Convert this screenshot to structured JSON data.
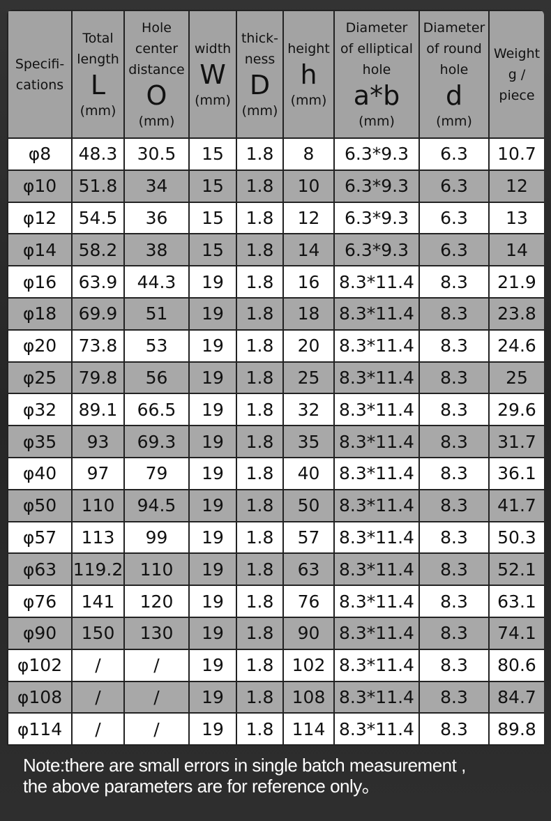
{
  "headers": [
    {
      "label": "Specifi-\ncations",
      "symbol": "",
      "unit": ""
    },
    {
      "label": "Total\nlength",
      "symbol": "L",
      "unit": "(mm)"
    },
    {
      "label": "Hole\ncenter\ndistance",
      "symbol": "O",
      "unit": "(mm)"
    },
    {
      "label": "width",
      "symbol": "W",
      "unit": "(mm)"
    },
    {
      "label": "thick-\nness",
      "symbol": "D",
      "unit": "(mm)"
    },
    {
      "label": "height",
      "symbol": "h",
      "unit": "(mm)"
    },
    {
      "label": "Diameter\nof elliptical\nhole",
      "symbol": "a*b",
      "unit": "(mm)"
    },
    {
      "label": "Diameter\nof round\nhole",
      "symbol": "d",
      "unit": "(mm)"
    },
    {
      "label": "Weight\ng /\npiece",
      "symbol": "",
      "unit": ""
    }
  ],
  "rows": [
    [
      "φ8",
      "48.3",
      "30.5",
      "15",
      "1.8",
      "8",
      "6.3*9.3",
      "6.3",
      "10.7"
    ],
    [
      "φ10",
      "51.8",
      "34",
      "15",
      "1.8",
      "10",
      "6.3*9.3",
      "6.3",
      "12"
    ],
    [
      "φ12",
      "54.5",
      "36",
      "15",
      "1.8",
      "12",
      "6.3*9.3",
      "6.3",
      "13"
    ],
    [
      "φ14",
      "58.2",
      "38",
      "15",
      "1.8",
      "14",
      "6.3*9.3",
      "6.3",
      "14"
    ],
    [
      "φ16",
      "63.9",
      "44.3",
      "19",
      "1.8",
      "16",
      "8.3*11.4",
      "8.3",
      "21.9"
    ],
    [
      "φ18",
      "69.9",
      "51",
      "19",
      "1.8",
      "18",
      "8.3*11.4",
      "8.3",
      "23.8"
    ],
    [
      "φ20",
      "73.8",
      "53",
      "19",
      "1.8",
      "20",
      "8.3*11.4",
      "8.3",
      "24.6"
    ],
    [
      "φ25",
      "79.8",
      "56",
      "19",
      "1.8",
      "25",
      "8.3*11.4",
      "8.3",
      "25"
    ],
    [
      "φ32",
      "89.1",
      "66.5",
      "19",
      "1.8",
      "32",
      "8.3*11.4",
      "8.3",
      "29.6"
    ],
    [
      "φ35",
      "93",
      "69.3",
      "19",
      "1.8",
      "35",
      "8.3*11.4",
      "8.3",
      "31.7"
    ],
    [
      "φ40",
      "97",
      "79",
      "19",
      "1.8",
      "40",
      "8.3*11.4",
      "8.3",
      "36.1"
    ],
    [
      "φ50",
      "110",
      "94.5",
      "19",
      "1.8",
      "50",
      "8.3*11.4",
      "8.3",
      "41.7"
    ],
    [
      "φ57",
      "113",
      "99",
      "19",
      "1.8",
      "57",
      "8.3*11.4",
      "8.3",
      "50.3"
    ],
    [
      "φ63",
      "119.2",
      "110",
      "19",
      "1.8",
      "63",
      "8.3*11.4",
      "8.3",
      "52.1"
    ],
    [
      "φ76",
      "141",
      "120",
      "19",
      "1.8",
      "76",
      "8.3*11.4",
      "8.3",
      "63.1"
    ],
    [
      "φ90",
      "150",
      "130",
      "19",
      "1.8",
      "90",
      "8.3*11.4",
      "8.3",
      "74.1"
    ],
    [
      "φ102",
      "/",
      "/",
      "19",
      "1.8",
      "102",
      "8.3*11.4",
      "8.3",
      "80.6"
    ],
    [
      "φ108",
      "/",
      "/",
      "19",
      "1.8",
      "108",
      "8.3*11.4",
      "8.3",
      "84.7"
    ],
    [
      "φ114",
      "/",
      "/",
      "19",
      "1.8",
      "114",
      "8.3*11.4",
      "8.3",
      "89.8"
    ]
  ],
  "note": {
    "line1": "Note:there are small errors in single batch measurement ,",
    "line2": "the above parameters are for reference only。"
  }
}
